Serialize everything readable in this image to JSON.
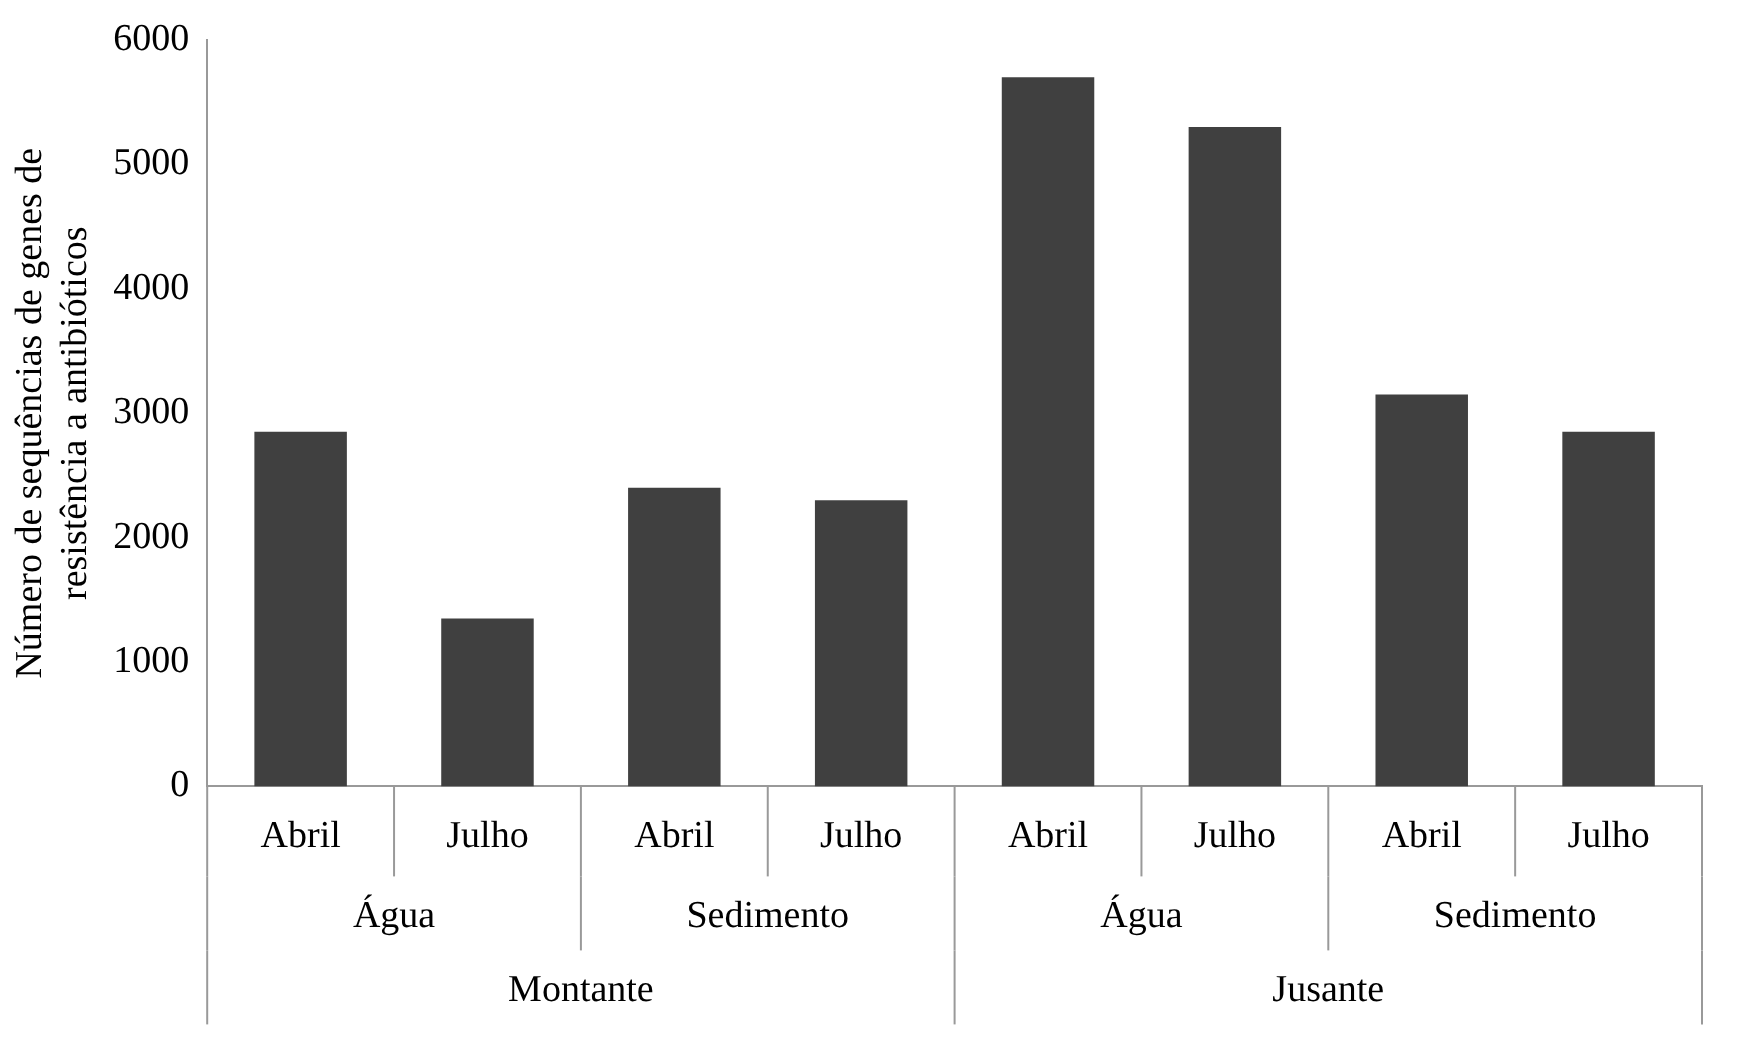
{
  "chart_data": {
    "type": "bar",
    "ylabel": "Número de sequências de genes de resistência a antibióticos",
    "categories": [
      "Abril",
      "Julho",
      "Abril",
      "Julho",
      "Abril",
      "Julho",
      "Abril",
      "Julho"
    ],
    "values": [
      2850,
      1350,
      2400,
      2300,
      5700,
      5300,
      3150,
      2850
    ],
    "color": "#404040",
    "ylim": [
      0,
      6000
    ],
    "yticks": [
      0,
      1000,
      2000,
      3000,
      4000,
      5000,
      6000
    ],
    "annotations": [
      "Água",
      "Sedimento",
      "Água",
      "Sedimento",
      "Montante",
      "Jusante"
    ],
    "grid": false,
    "legend": false
  }
}
